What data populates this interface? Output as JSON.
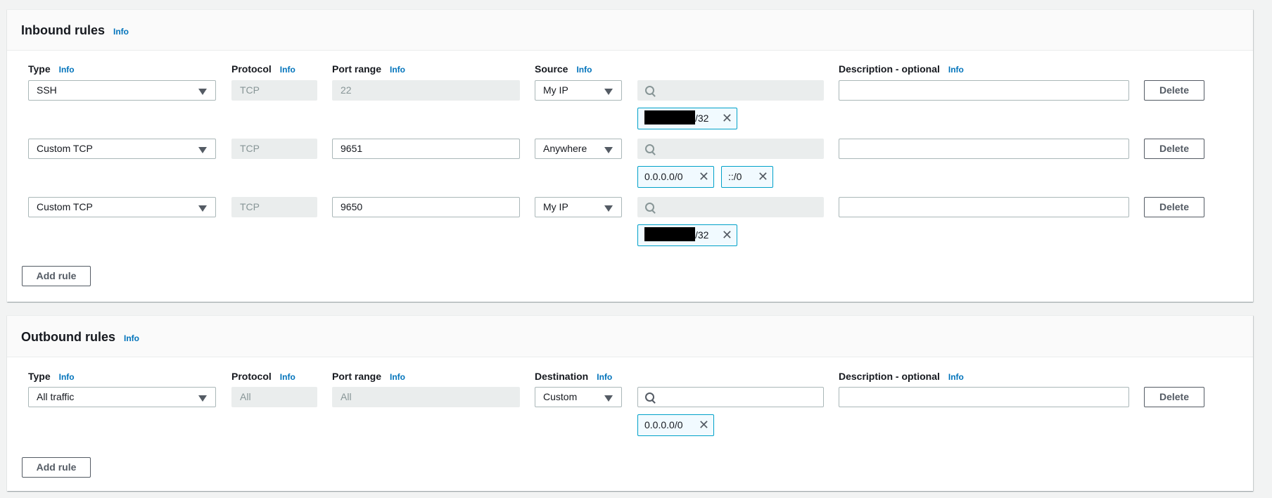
{
  "info": "Info",
  "inbound": {
    "title": "Inbound rules",
    "headers": {
      "type": "Type",
      "protocol": "Protocol",
      "port": "Port range",
      "source": "Source",
      "description": "Description - optional"
    },
    "rows": [
      {
        "type": "SSH",
        "protocol": "TCP",
        "port": "22",
        "port_disabled": true,
        "source": "My IP",
        "chips": [
          "/32"
        ],
        "chip_redacted": true
      },
      {
        "type": "Custom TCP",
        "protocol": "TCP",
        "port": "9651",
        "port_disabled": false,
        "source": "Anywhere",
        "chips": [
          "0.0.0.0/0",
          "::/0"
        ],
        "chip_redacted": false
      },
      {
        "type": "Custom TCP",
        "protocol": "TCP",
        "port": "9650",
        "port_disabled": false,
        "source": "My IP",
        "chips": [
          "/32"
        ],
        "chip_redacted": true
      }
    ],
    "delete_label": "Delete",
    "add_rule_label": "Add rule"
  },
  "outbound": {
    "title": "Outbound rules",
    "headers": {
      "type": "Type",
      "protocol": "Protocol",
      "port": "Port range",
      "destination": "Destination",
      "description": "Description - optional"
    },
    "rows": [
      {
        "type": "All traffic",
        "protocol": "All",
        "port": "All",
        "destination": "Custom",
        "chips": [
          "0.0.0.0/0"
        ]
      }
    ],
    "delete_label": "Delete",
    "add_rule_label": "Add rule"
  }
}
